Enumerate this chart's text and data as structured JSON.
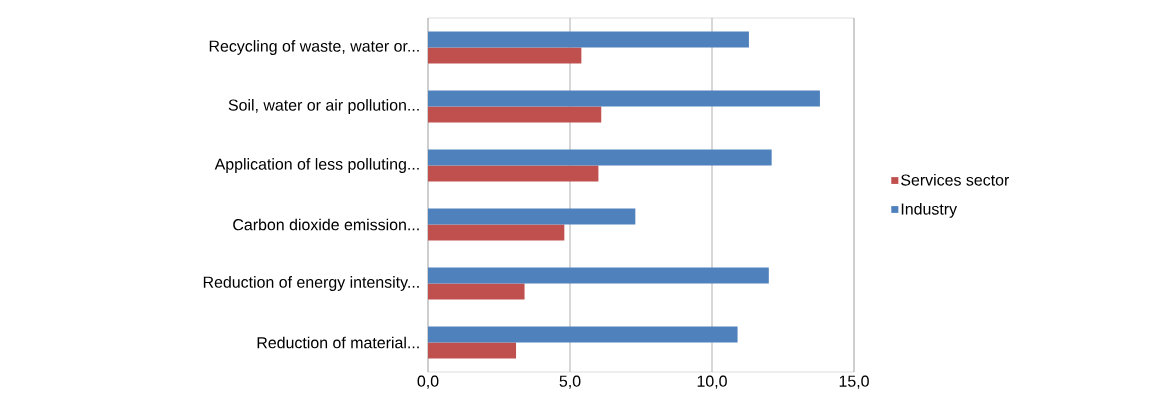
{
  "chart_data": {
    "type": "bar",
    "orientation": "horizontal",
    "categories": [
      "Recycling of waste, water or...",
      "Soil, water or air pollution...",
      "Application of less polluting...",
      "Carbon dioxide emission...",
      "Reduction of energy intensity...",
      "Reduction of material..."
    ],
    "series": [
      {
        "name": "Services sector",
        "color": "#c0504d",
        "values": [
          5.4,
          6.1,
          6.0,
          4.8,
          3.4,
          3.1
        ]
      },
      {
        "name": "Industry",
        "color": "#4f81bd",
        "values": [
          11.3,
          13.8,
          12.1,
          7.3,
          12.0,
          10.9
        ]
      }
    ],
    "xlim": [
      0,
      15
    ],
    "xticks": [
      {
        "value": 0,
        "label": "0,0"
      },
      {
        "value": 5,
        "label": "5,0"
      },
      {
        "value": 10,
        "label": "10,0"
      },
      {
        "value": 15,
        "label": "15,0"
      }
    ],
    "grid": "x",
    "legend": "right"
  }
}
